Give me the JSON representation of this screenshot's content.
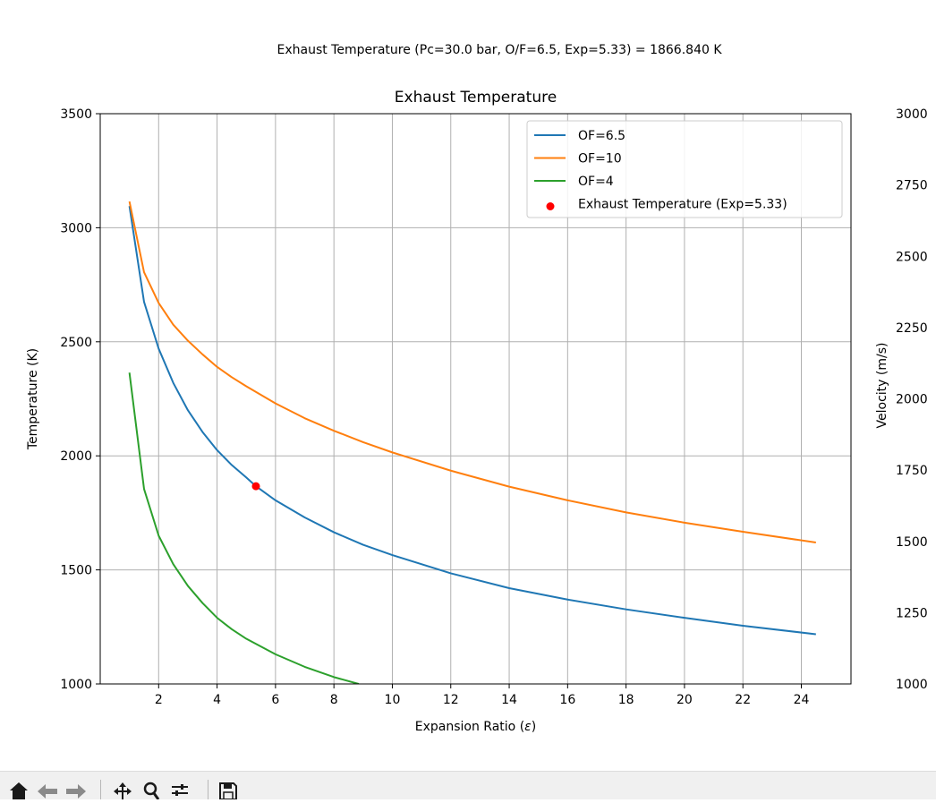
{
  "suptitle": "Exhaust Temperature (Pc=30.0 bar, O/F=6.5, Exp=5.33) = 1866.840 K",
  "chart_data": {
    "type": "line",
    "title": "Exhaust Temperature",
    "xlabel": "Expansion Ratio ($\\epsilon$)",
    "xlabel_main": "Expansion Ratio (",
    "xlabel_symbol": "ε",
    "xlabel_close": ")",
    "ylabel": "Temperature (K)",
    "ylabel_right": "Velocity (m/s)",
    "xlim": [
      0.0,
      25.7
    ],
    "ylim": [
      1000,
      3500
    ],
    "ylim_right": [
      1000,
      3000
    ],
    "x_ticks": [
      2,
      4,
      6,
      8,
      10,
      12,
      14,
      16,
      18,
      20,
      22,
      24
    ],
    "y_ticks": [
      1000,
      1500,
      2000,
      2500,
      3000,
      3500
    ],
    "y_ticks_right": [
      1000,
      1250,
      1500,
      1750,
      2000,
      2250,
      2500,
      2750,
      3000
    ],
    "grid": true,
    "legend_position": "upper right",
    "series": [
      {
        "name": "OF=6.5",
        "color": "#1f77b4",
        "x": [
          1,
          1.5,
          2,
          2.5,
          3,
          3.5,
          4,
          4.5,
          5,
          5.33,
          6,
          7,
          8,
          9,
          10,
          12,
          14,
          16,
          18,
          20,
          22,
          24.5
        ],
        "y": [
          3095,
          2675,
          2470,
          2320,
          2200,
          2105,
          2025,
          1960,
          1905,
          1867,
          1805,
          1730,
          1665,
          1610,
          1565,
          1485,
          1420,
          1370,
          1327,
          1290,
          1255,
          1218
        ]
      },
      {
        "name": "OF=10",
        "color": "#ff7f0e",
        "x": [
          1,
          1.5,
          2,
          2.5,
          3,
          3.5,
          4,
          4.5,
          5,
          6,
          7,
          8,
          9,
          10,
          12,
          14,
          16,
          18,
          20,
          22,
          24.5
        ],
        "y": [
          3115,
          2805,
          2670,
          2575,
          2505,
          2445,
          2390,
          2345,
          2305,
          2230,
          2165,
          2110,
          2060,
          2015,
          1935,
          1865,
          1805,
          1752,
          1707,
          1667,
          1620
        ]
      },
      {
        "name": "OF=4",
        "color": "#2ca02c",
        "x": [
          1,
          1.5,
          2,
          2.5,
          3,
          3.5,
          4,
          4.5,
          5,
          6,
          7,
          8,
          8.85
        ],
        "y": [
          2365,
          1855,
          1650,
          1525,
          1430,
          1355,
          1290,
          1240,
          1198,
          1130,
          1075,
          1030,
          1000
        ]
      }
    ],
    "marker": {
      "name": "Exhaust Temperature (Exp=5.33)",
      "x": 5.33,
      "y": 1866.84,
      "color": "#ff0000"
    }
  },
  "toolbar": {
    "home": "home-icon",
    "back": "back-arrow-icon",
    "forward": "forward-arrow-icon",
    "pan": "pan-icon",
    "zoom": "zoom-icon",
    "configure": "configure-subplots-icon",
    "save": "save-icon"
  }
}
